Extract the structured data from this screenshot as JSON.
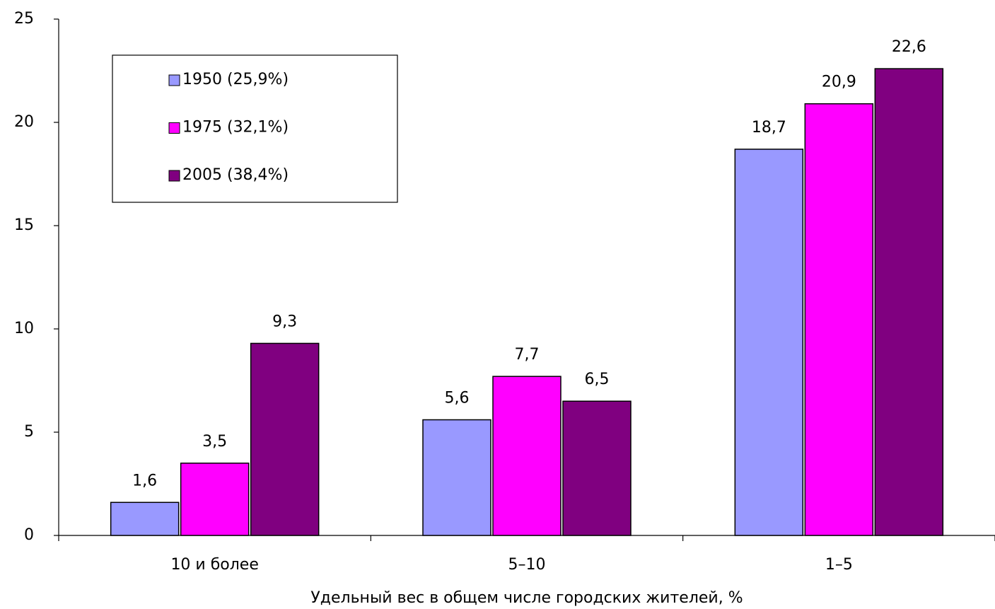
{
  "chart_data": {
    "type": "bar",
    "x_label": "Удельный вес в общем числе городских жителей, %",
    "categories": [
      "10 и более",
      "5–10",
      "1–5"
    ],
    "series": [
      {
        "name": "1950 (25,9%)",
        "color": "#9999ff",
        "values": [
          1.6,
          5.6,
          18.7
        ],
        "value_labels": [
          "1,6",
          "5,6",
          "18,7"
        ]
      },
      {
        "name": "1975 (32,1%)",
        "color": "#ff00ff",
        "values": [
          3.5,
          7.7,
          20.9
        ],
        "value_labels": [
          "3,5",
          "7,7",
          "20,9"
        ]
      },
      {
        "name": "2005 (38,4%)",
        "color": "#800080",
        "values": [
          9.3,
          6.5,
          22.6
        ],
        "value_labels": [
          "9,3",
          "6,5",
          "22,6"
        ]
      }
    ],
    "ylim": [
      0,
      25
    ],
    "yticks": [
      0,
      5,
      10,
      15,
      20,
      25
    ],
    "grid": false,
    "legend": "top-left"
  }
}
